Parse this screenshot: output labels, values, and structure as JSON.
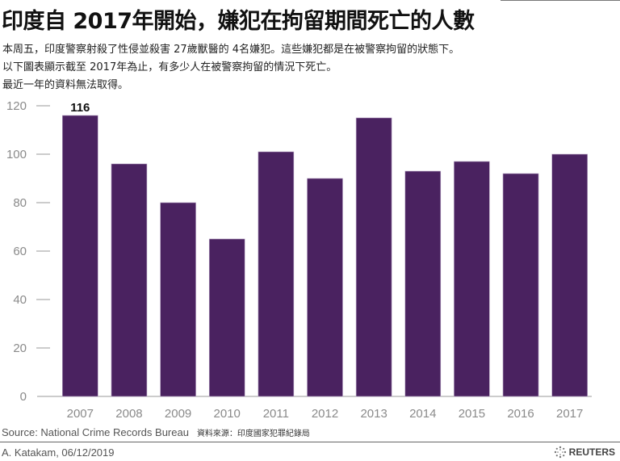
{
  "title": "印度自 2017年開始，嫌犯在拘留期間死亡的人數",
  "subtitle_lines": [
    "本周五，印度警察射殺了性侵並殺害 27歲獸醫的 4名嫌犯。這些嫌犯都是在被警察拘留的狀態下。",
    "以下圖表顯示截至 2017年為止，有多少人在被警察拘留的情況下死亡。",
    "最近一年的資料無法取得。"
  ],
  "footer": {
    "source": "Source: National Crime Records Bureau",
    "source_zh": "資料來源：印度國家犯罪紀錄局",
    "credit": "A. Katakam,  06/12/2019",
    "brand": "REUTERS"
  },
  "colors": {
    "bar": "#4a2260",
    "axis_text": "#888888"
  },
  "chart_data": {
    "type": "bar",
    "title": "印度自 2017年開始，嫌犯在拘留期間死亡的人數",
    "xlabel": "",
    "ylabel": "",
    "categories": [
      "2007",
      "2008",
      "2009",
      "2010",
      "2011",
      "2012",
      "2013",
      "2014",
      "2015",
      "2016",
      "2017"
    ],
    "values": [
      116,
      96,
      80,
      65,
      101,
      90,
      115,
      93,
      97,
      92,
      100
    ],
    "ylim": [
      0,
      120
    ],
    "yticks": [
      0,
      20,
      40,
      60,
      80,
      100,
      120
    ],
    "annotations": [
      {
        "category": "2007",
        "text": "116"
      }
    ],
    "grid": false
  }
}
